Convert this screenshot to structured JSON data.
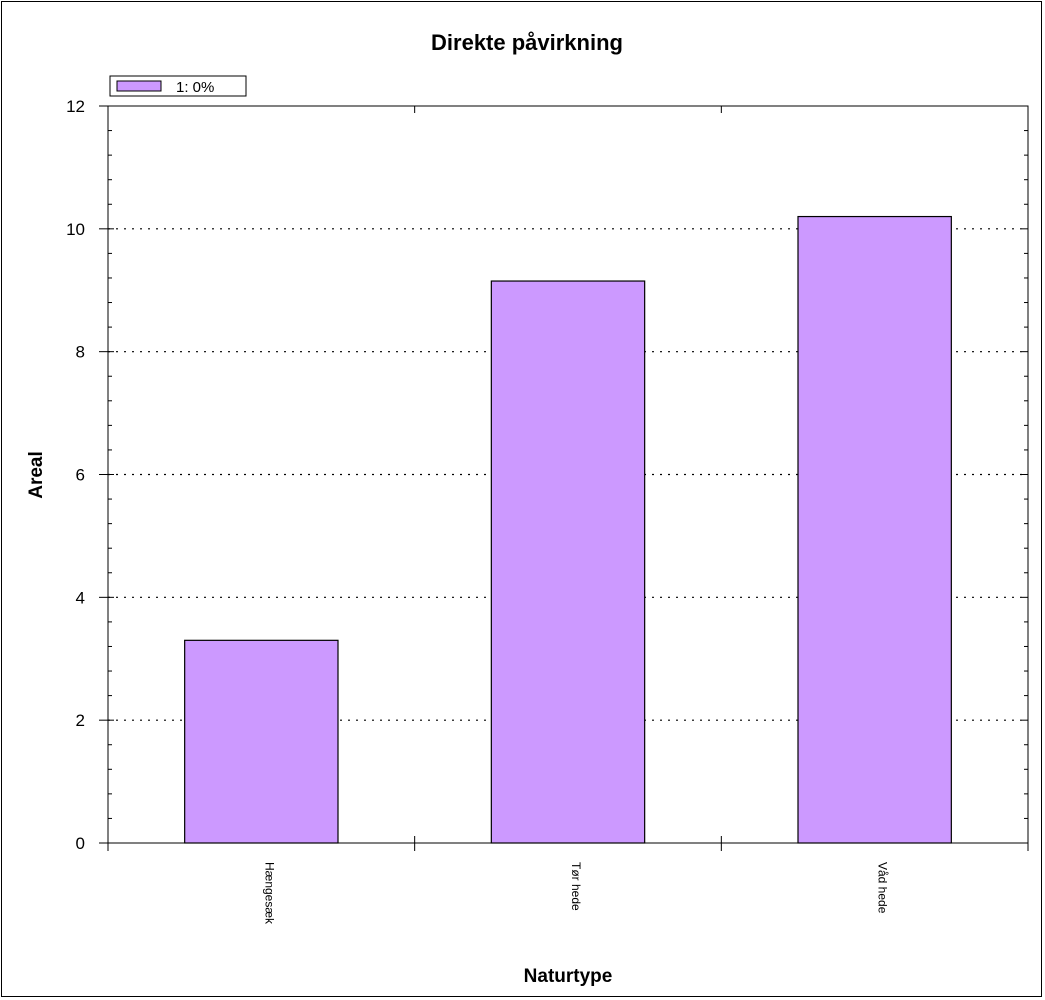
{
  "chart_data": {
    "type": "bar",
    "title": "Direkte påvirkning",
    "xlabel": "Naturtype",
    "ylabel": "Areal",
    "categories": [
      "Hængesæk",
      "Tør hede",
      "Våd hede"
    ],
    "series": [
      {
        "name": "1: 0%",
        "values": [
          3.3,
          9.15,
          10.2
        ],
        "color": "#cc99ff"
      }
    ],
    "ylim": [
      0,
      12
    ],
    "yticks": [
      "0",
      "2",
      "4",
      "6",
      "8",
      "10",
      "12"
    ],
    "grid": true,
    "legend_position": "top-left"
  }
}
